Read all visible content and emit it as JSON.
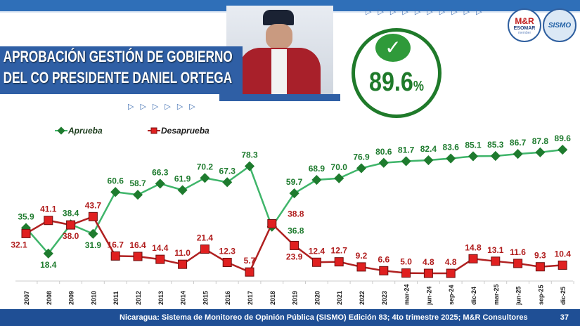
{
  "header": {
    "title_line1": "APROBACIÓN GESTIÓN DE GOBIERNO",
    "title_line2": "DEL CO PRESIDENTE DANIEL ORTEGA",
    "highlight_value": "89.6",
    "highlight_unit": "%",
    "decor_triangles": "▷▷▷▷▷▷▷▷▷▷",
    "logo1_text": "M&R",
    "logo1_sub": "ESOMAR",
    "logo1_member": "member",
    "logo2_text": "SISMO"
  },
  "footer": {
    "source": "Nicaragua: Sistema de Monitoreo de Opinión Pública (SISMO) Edición 83; 4to trimestre 2025; M&R Consultores",
    "page": "37"
  },
  "colors": {
    "aprueba": "#1e7b2e",
    "desaprueba": "#c01c1c",
    "brand": "#2f5fa5"
  },
  "chart_data": {
    "type": "line",
    "categories": [
      "2007",
      "2008",
      "2009",
      "2010",
      "2011",
      "2012",
      "2013",
      "2014",
      "2015",
      "2016",
      "2017",
      "2018",
      "2019",
      "2020",
      "2021",
      "2022",
      "2023",
      "mar-24",
      "jun-24",
      "sep-24",
      "dic-24",
      "mar-25",
      "jun-25",
      "sep-25",
      "dic-25"
    ],
    "series": [
      {
        "name": "Aprueba",
        "values": [
          35.9,
          18.4,
          38.4,
          31.9,
          60.6,
          58.7,
          66.3,
          61.9,
          70.2,
          67.3,
          78.3,
          36.8,
          59.7,
          68.9,
          70.0,
          76.9,
          80.6,
          81.7,
          82.4,
          83.6,
          85.1,
          85.3,
          86.7,
          87.8,
          89.6
        ]
      },
      {
        "name": "Desaprueba",
        "values": [
          32.1,
          41.1,
          38.0,
          43.7,
          16.7,
          16.4,
          14.4,
          11.0,
          21.4,
          12.3,
          5.7,
          38.8,
          23.9,
          12.4,
          12.7,
          9.2,
          6.6,
          5.0,
          4.8,
          4.8,
          14.8,
          13.1,
          11.6,
          9.3,
          10.4
        ]
      }
    ],
    "legend": "top-left",
    "grid": false
  }
}
